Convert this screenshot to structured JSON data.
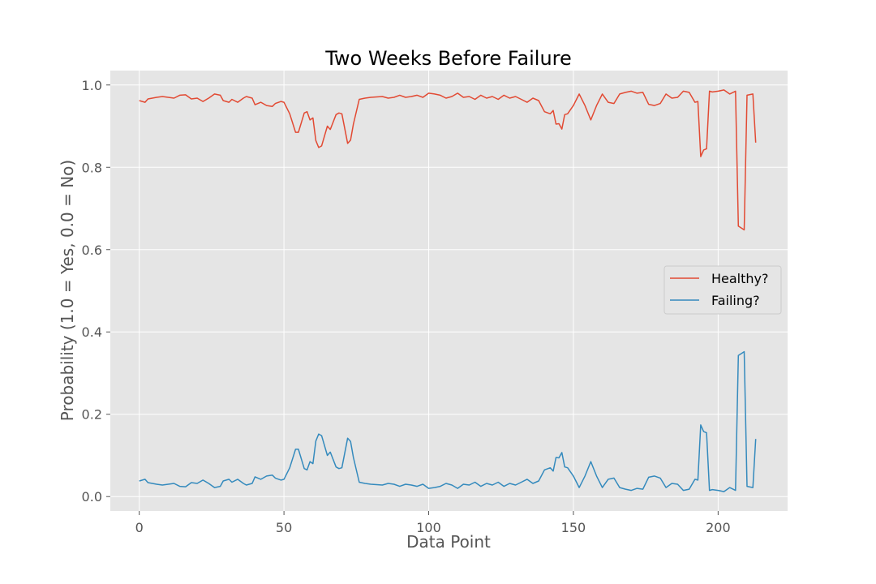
{
  "chart_data": {
    "type": "line",
    "title": "Two Weeks Before Failure",
    "xlabel": "Data Point",
    "ylabel": "Probability (1.0 = Yes, 0.0 = No)",
    "xlim": [
      -10,
      224
    ],
    "ylim": [
      -0.035,
      1.035
    ],
    "xticks": [
      0,
      50,
      100,
      150,
      200
    ],
    "yticks": [
      0.0,
      0.2,
      0.4,
      0.6,
      0.8,
      1.0
    ],
    "xtick_labels": [
      "0",
      "50",
      "100",
      "150",
      "200"
    ],
    "ytick_labels": [
      "0.0",
      "0.2",
      "0.4",
      "0.6",
      "0.8",
      "1.0"
    ],
    "grid": true,
    "legend_position": "center-right",
    "background_color": "#e5e5e5",
    "series": [
      {
        "name": "Healthy?",
        "color": "#e24a33",
        "x": [
          0,
          2,
          3,
          6,
          8,
          10,
          12,
          14,
          16,
          18,
          20,
          22,
          24,
          26,
          28,
          29,
          31,
          32,
          34,
          36,
          37,
          39,
          40,
          42,
          44,
          46,
          47,
          49,
          50,
          52,
          54,
          55,
          57,
          58,
          59,
          60,
          61,
          62,
          63,
          65,
          66,
          68,
          69,
          70,
          72,
          73,
          74,
          76,
          78,
          80,
          84,
          86,
          88,
          90,
          92,
          94,
          96,
          98,
          100,
          102,
          104,
          106,
          108,
          110,
          112,
          114,
          116,
          118,
          120,
          122,
          124,
          126,
          128,
          130,
          132,
          134,
          136,
          138,
          140,
          142,
          143,
          144,
          145,
          146,
          147,
          148,
          150,
          152,
          154,
          156,
          158,
          160,
          162,
          164,
          166,
          168,
          170,
          172,
          174,
          176,
          178,
          180,
          182,
          184,
          186,
          188,
          190,
          192,
          193,
          194,
          195,
          196,
          197,
          198,
          200,
          202,
          204,
          206,
          207,
          209,
          210,
          212,
          213
        ],
        "y": [
          0.962,
          0.958,
          0.966,
          0.97,
          0.972,
          0.97,
          0.968,
          0.975,
          0.976,
          0.966,
          0.968,
          0.96,
          0.968,
          0.978,
          0.975,
          0.962,
          0.958,
          0.965,
          0.958,
          0.968,
          0.972,
          0.968,
          0.952,
          0.958,
          0.95,
          0.948,
          0.955,
          0.96,
          0.958,
          0.93,
          0.885,
          0.885,
          0.932,
          0.935,
          0.915,
          0.92,
          0.865,
          0.848,
          0.852,
          0.9,
          0.892,
          0.928,
          0.932,
          0.93,
          0.858,
          0.866,
          0.905,
          0.965,
          0.968,
          0.97,
          0.972,
          0.968,
          0.97,
          0.975,
          0.97,
          0.972,
          0.975,
          0.97,
          0.98,
          0.978,
          0.975,
          0.968,
          0.972,
          0.98,
          0.97,
          0.972,
          0.965,
          0.975,
          0.968,
          0.972,
          0.965,
          0.975,
          0.968,
          0.972,
          0.965,
          0.958,
          0.968,
          0.962,
          0.935,
          0.93,
          0.938,
          0.905,
          0.906,
          0.893,
          0.928,
          0.93,
          0.95,
          0.978,
          0.95,
          0.915,
          0.95,
          0.978,
          0.958,
          0.955,
          0.978,
          0.982,
          0.985,
          0.98,
          0.982,
          0.953,
          0.95,
          0.955,
          0.978,
          0.968,
          0.97,
          0.985,
          0.982,
          0.958,
          0.96,
          0.826,
          0.842,
          0.845,
          0.985,
          0.983,
          0.985,
          0.988,
          0.978,
          0.985,
          0.657,
          0.648,
          0.975,
          0.978,
          0.86
        ]
      },
      {
        "name": "Failing?",
        "color": "#348abd",
        "x": [
          0,
          2,
          3,
          6,
          8,
          10,
          12,
          14,
          16,
          18,
          20,
          22,
          24,
          26,
          28,
          29,
          31,
          32,
          34,
          36,
          37,
          39,
          40,
          42,
          44,
          46,
          47,
          49,
          50,
          52,
          54,
          55,
          57,
          58,
          59,
          60,
          61,
          62,
          63,
          65,
          66,
          68,
          69,
          70,
          72,
          73,
          74,
          76,
          78,
          80,
          84,
          86,
          88,
          90,
          92,
          94,
          96,
          98,
          100,
          102,
          104,
          106,
          108,
          110,
          112,
          114,
          116,
          118,
          120,
          122,
          124,
          126,
          128,
          130,
          132,
          134,
          136,
          138,
          140,
          142,
          143,
          144,
          145,
          146,
          147,
          148,
          150,
          152,
          154,
          156,
          158,
          160,
          162,
          164,
          166,
          168,
          170,
          172,
          174,
          176,
          178,
          180,
          182,
          184,
          186,
          188,
          190,
          192,
          193,
          194,
          195,
          196,
          197,
          198,
          200,
          202,
          204,
          206,
          207,
          209,
          210,
          212,
          213
        ],
        "y": [
          0.038,
          0.042,
          0.034,
          0.03,
          0.028,
          0.03,
          0.032,
          0.025,
          0.024,
          0.034,
          0.032,
          0.04,
          0.032,
          0.022,
          0.025,
          0.038,
          0.042,
          0.035,
          0.042,
          0.032,
          0.028,
          0.032,
          0.048,
          0.042,
          0.05,
          0.052,
          0.045,
          0.04,
          0.042,
          0.07,
          0.115,
          0.115,
          0.068,
          0.065,
          0.085,
          0.08,
          0.135,
          0.152,
          0.148,
          0.1,
          0.108,
          0.072,
          0.068,
          0.07,
          0.142,
          0.134,
          0.095,
          0.035,
          0.032,
          0.03,
          0.028,
          0.032,
          0.03,
          0.025,
          0.03,
          0.028,
          0.025,
          0.03,
          0.02,
          0.022,
          0.025,
          0.032,
          0.028,
          0.02,
          0.03,
          0.028,
          0.035,
          0.025,
          0.032,
          0.028,
          0.035,
          0.025,
          0.032,
          0.028,
          0.035,
          0.042,
          0.032,
          0.038,
          0.065,
          0.07,
          0.062,
          0.095,
          0.094,
          0.107,
          0.072,
          0.07,
          0.05,
          0.022,
          0.05,
          0.085,
          0.05,
          0.022,
          0.042,
          0.045,
          0.022,
          0.018,
          0.015,
          0.02,
          0.018,
          0.047,
          0.05,
          0.045,
          0.022,
          0.032,
          0.03,
          0.015,
          0.018,
          0.042,
          0.04,
          0.174,
          0.158,
          0.155,
          0.015,
          0.017,
          0.015,
          0.012,
          0.022,
          0.015,
          0.343,
          0.352,
          0.025,
          0.022,
          0.14
        ]
      }
    ]
  }
}
